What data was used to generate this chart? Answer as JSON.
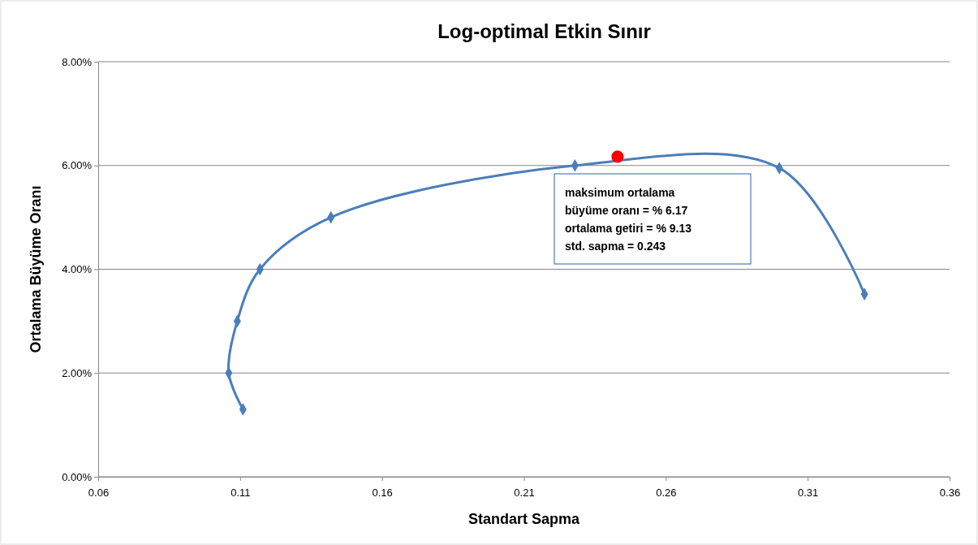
{
  "chart_data": {
    "type": "line",
    "title": "Log-optimal Etkin Sınır",
    "xlabel": "Standart Sapma",
    "ylabel": "Ortalama Büyüme Oranı",
    "xlim": [
      0.06,
      0.36
    ],
    "xticks": [
      0.06,
      0.11,
      0.16,
      0.21,
      0.26,
      0.31,
      0.36
    ],
    "ylim": [
      0,
      8
    ],
    "yticks": [
      {
        "value": 0,
        "label": "0.00%"
      },
      {
        "value": 2,
        "label": "2.00%"
      },
      {
        "value": 4,
        "label": "4.00%"
      },
      {
        "value": 6,
        "label": "6.00%"
      },
      {
        "value": 8,
        "label": "8.00%"
      }
    ],
    "grid": "y",
    "series": [
      {
        "color": "#4a7ebb",
        "marker": "diamond",
        "x": [
          0.111,
          0.106,
          0.109,
          0.117,
          0.142,
          0.228,
          0.3,
          0.33
        ],
        "values": [
          1.3,
          2.0,
          3.0,
          4.0,
          5.0,
          6.0,
          5.95,
          3.52
        ]
      },
      {
        "type": "scatter",
        "color": "#ff0000",
        "marker": "circle",
        "x": [
          0.243
        ],
        "values": [
          6.17
        ]
      }
    ],
    "annotations": [
      "maksimum ortalama",
      "büyüme oranı = % 6.17",
      "ortalama getiri = % 9.13",
      "std. sapma  = 0.243"
    ]
  }
}
